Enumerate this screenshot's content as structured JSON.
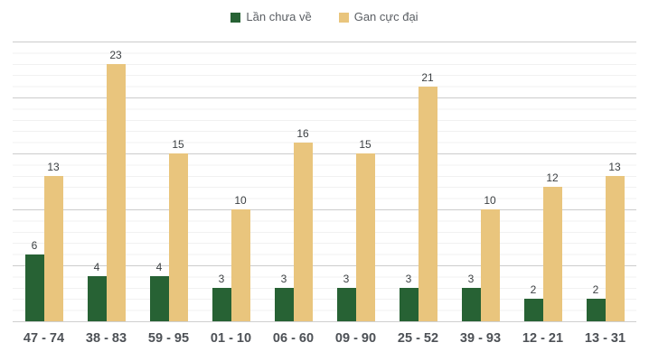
{
  "chart_data": {
    "type": "bar",
    "title": "",
    "xlabel": "",
    "ylabel": "",
    "categories": [
      "47 - 74",
      "38 - 83",
      "59 - 95",
      "01 - 10",
      "06 - 60",
      "09 - 90",
      "25 - 52",
      "39 - 93",
      "12 - 21",
      "13 - 31"
    ],
    "series": [
      {
        "name": "Lần chưa về",
        "color": "#276234",
        "values": [
          6,
          4,
          4,
          3,
          3,
          3,
          3,
          3,
          2,
          2
        ]
      },
      {
        "name": "Gan cực đại",
        "color": "#e9c57d",
        "values": [
          13,
          23,
          15,
          10,
          16,
          15,
          21,
          10,
          12,
          13
        ]
      }
    ],
    "ylim": [
      0,
      25
    ],
    "grid": {
      "major_step": 5,
      "minor_step": 1,
      "major_color": "#cccccc",
      "minor_color": "#f1f1f1"
    },
    "legend_position": "top",
    "value_labels_shown": true,
    "y_axis_labels_shown": false
  }
}
